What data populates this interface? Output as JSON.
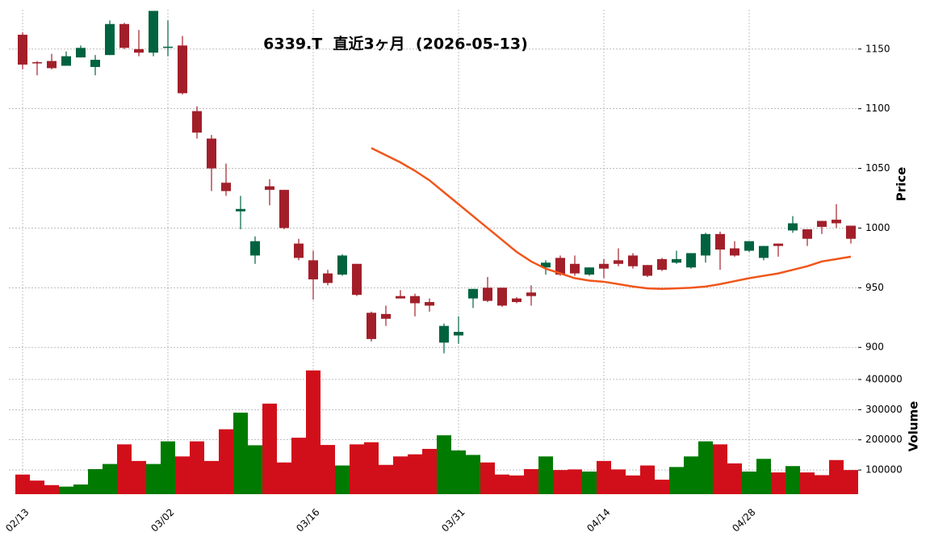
{
  "chart_data": {
    "type": "candlestick",
    "title": "6339.T  直近3ヶ月  (2026-05-13)",
    "categories": [
      "02/13",
      null,
      null,
      null,
      null,
      null,
      null,
      null,
      null,
      null,
      "03/02",
      null,
      null,
      null,
      null,
      null,
      null,
      null,
      null,
      null,
      "03/16",
      null,
      null,
      null,
      null,
      null,
      null,
      null,
      null,
      null,
      "03/31",
      null,
      null,
      null,
      null,
      null,
      null,
      null,
      null,
      null,
      "04/14",
      null,
      null,
      null,
      null,
      null,
      null,
      null,
      null,
      null,
      "04/28",
      null,
      null,
      null,
      null,
      null,
      null,
      null
    ],
    "open": [
      1162,
      1139,
      1140,
      1136,
      1143,
      1135,
      1145,
      1171,
      1150,
      1147,
      1151,
      1153,
      1098,
      1075,
      1038,
      1014,
      977,
      1035,
      1032,
      987,
      973,
      962,
      961,
      970,
      929,
      928,
      943,
      943,
      938,
      904,
      910,
      941,
      950,
      950,
      941,
      946,
      967,
      975,
      970,
      961,
      970,
      973,
      977,
      969,
      974,
      971,
      967,
      977,
      995,
      983,
      981,
      975,
      987,
      998,
      999,
      1006,
      1007,
      1002
    ],
    "high": [
      1164,
      1140,
      1146,
      1148,
      1153,
      1145,
      1174,
      1172,
      1166,
      1182,
      1174,
      1161,
      1102,
      1078,
      1054,
      1027,
      993,
      1041,
      1032,
      991,
      981,
      965,
      978,
      970,
      930,
      935,
      948,
      945,
      941,
      920,
      926,
      949,
      959,
      950,
      942,
      952,
      973,
      977,
      977,
      967,
      974,
      983,
      979,
      969,
      975,
      981,
      979,
      996,
      997,
      989,
      989,
      985,
      987,
      1010,
      999,
      1006,
      1020,
      1002
    ],
    "low": [
      1133,
      1128,
      1133,
      1136,
      1143,
      1128,
      1145,
      1150,
      1144,
      1144,
      1144,
      1112,
      1075,
      1031,
      1027,
      999,
      970,
      1019,
      999,
      973,
      940,
      952,
      960,
      943,
      905,
      918,
      941,
      926,
      930,
      895,
      903,
      933,
      938,
      934,
      937,
      935,
      961,
      960,
      960,
      960,
      958,
      968,
      966,
      959,
      964,
      970,
      966,
      971,
      965,
      976,
      980,
      973,
      976,
      996,
      985,
      995,
      1000,
      987
    ],
    "close": [
      1137,
      1138,
      1134,
      1144,
      1151,
      1141,
      1171,
      1151,
      1147,
      1182,
      1152,
      1113,
      1080,
      1050,
      1031,
      1016,
      989,
      1032,
      1000,
      975,
      957,
      954,
      977,
      944,
      907,
      924,
      941,
      937,
      935,
      918,
      913,
      949,
      939,
      935,
      938,
      943,
      971,
      961,
      962,
      967,
      966,
      970,
      968,
      960,
      965,
      974,
      979,
      995,
      982,
      977,
      989,
      985,
      985,
      1004,
      991,
      1001,
      1004,
      991
    ],
    "volume": [
      85000,
      65000,
      50000,
      45000,
      52000,
      103000,
      120000,
      185000,
      130000,
      120000,
      195000,
      145000,
      195000,
      130000,
      235000,
      290000,
      182000,
      320000,
      125000,
      207000,
      430000,
      183000,
      115000,
      185000,
      192000,
      117000,
      145000,
      152000,
      170000,
      215000,
      165000,
      150000,
      125000,
      85000,
      82000,
      103000,
      145000,
      100000,
      102000,
      95000,
      130000,
      102000,
      82000,
      115000,
      68000,
      110000,
      145000,
      195000,
      185000,
      122000,
      95000,
      137000,
      92000,
      113000,
      92000,
      83000,
      133000,
      100000
    ],
    "moving_average": {
      "color": "#f0561a",
      "values": [
        null,
        null,
        null,
        null,
        null,
        null,
        null,
        null,
        null,
        null,
        null,
        null,
        null,
        null,
        null,
        null,
        null,
        null,
        null,
        null,
        null,
        null,
        null,
        null,
        1067,
        1061,
        1055,
        1048,
        1040,
        1030,
        1020,
        1010,
        1000,
        990,
        980,
        972,
        966,
        962,
        958,
        956,
        955,
        953,
        951,
        949.5,
        949,
        949.5,
        950,
        951,
        953,
        955.5,
        958,
        960,
        962,
        965,
        968,
        972,
        974,
        976
      ]
    },
    "up_color": "#006340",
    "down_color": "#a21f2a",
    "volume_up_color": "#007a00",
    "volume_down_color": "#d10f1a",
    "ylim": [
      890,
      1183
    ],
    "yticks": [
      900,
      950,
      1000,
      1050,
      1100,
      1150
    ],
    "y_label": "Price",
    "y2lim": [
      20000,
      440000
    ],
    "y2ticks": [
      100000,
      200000,
      300000,
      400000
    ],
    "y2_label": "Volume",
    "grid": true
  }
}
